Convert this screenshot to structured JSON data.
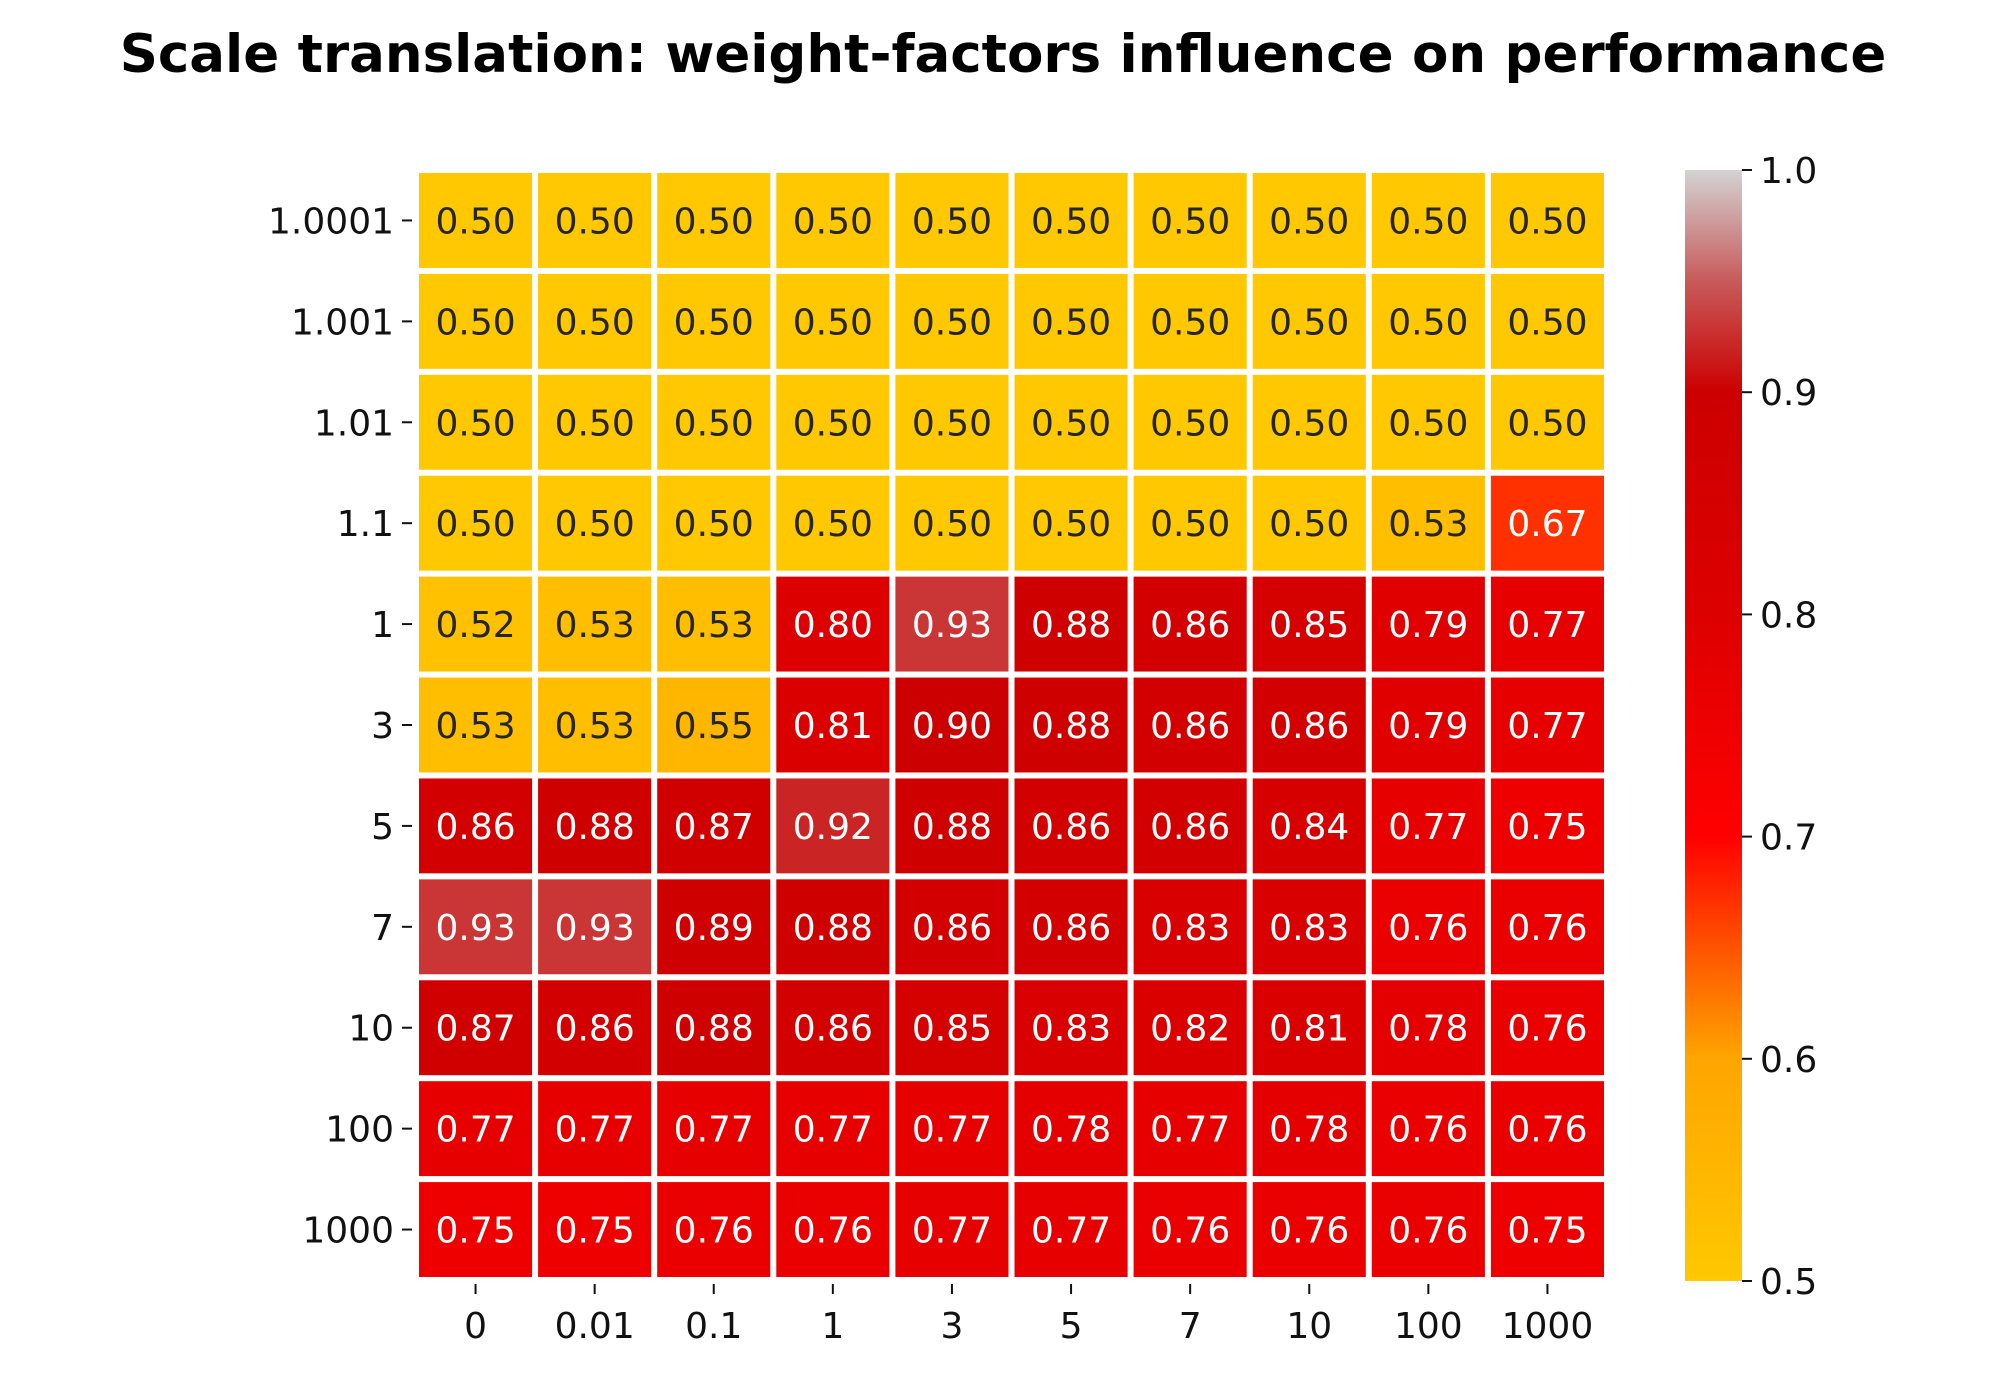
{
  "chart_data": {
    "type": "heatmap",
    "title": "Scale translation: weight-factors influence on performance",
    "xlabel": "",
    "ylabel": "",
    "x_categories": [
      "0",
      "0.01",
      "0.1",
      "1",
      "3",
      "5",
      "7",
      "10",
      "100",
      "1000"
    ],
    "y_categories": [
      "1.0001",
      "1.001",
      "1.01",
      "1.1",
      "1",
      "3",
      "5",
      "7",
      "10",
      "100",
      "1000"
    ],
    "values": [
      [
        0.5,
        0.5,
        0.5,
        0.5,
        0.5,
        0.5,
        0.5,
        0.5,
        0.5,
        0.5
      ],
      [
        0.5,
        0.5,
        0.5,
        0.5,
        0.5,
        0.5,
        0.5,
        0.5,
        0.5,
        0.5
      ],
      [
        0.5,
        0.5,
        0.5,
        0.5,
        0.5,
        0.5,
        0.5,
        0.5,
        0.5,
        0.5
      ],
      [
        0.5,
        0.5,
        0.5,
        0.5,
        0.5,
        0.5,
        0.5,
        0.5,
        0.53,
        0.67
      ],
      [
        0.52,
        0.53,
        0.53,
        0.8,
        0.93,
        0.88,
        0.86,
        0.85,
        0.79,
        0.77
      ],
      [
        0.53,
        0.53,
        0.55,
        0.81,
        0.9,
        0.88,
        0.86,
        0.86,
        0.79,
        0.77
      ],
      [
        0.86,
        0.88,
        0.87,
        0.92,
        0.88,
        0.86,
        0.86,
        0.84,
        0.77,
        0.75
      ],
      [
        0.93,
        0.93,
        0.89,
        0.88,
        0.86,
        0.86,
        0.83,
        0.83,
        0.76,
        0.76
      ],
      [
        0.87,
        0.86,
        0.88,
        0.86,
        0.85,
        0.83,
        0.82,
        0.81,
        0.78,
        0.76
      ],
      [
        0.77,
        0.77,
        0.77,
        0.77,
        0.77,
        0.78,
        0.77,
        0.78,
        0.76,
        0.76
      ],
      [
        0.75,
        0.75,
        0.76,
        0.76,
        0.77,
        0.77,
        0.76,
        0.76,
        0.76,
        0.75
      ]
    ],
    "colorbar": {
      "range": [
        0.5,
        1.0
      ],
      "ticks": [
        "0.5",
        "0.6",
        "0.7",
        "0.8",
        "0.9",
        "1.0"
      ],
      "colormap": [
        {
          "value": 0.5,
          "color": "#ffc800"
        },
        {
          "value": 0.6,
          "color": "#ffa500"
        },
        {
          "value": 0.7,
          "color": "#ff0000"
        },
        {
          "value": 0.8,
          "color": "#dd0000"
        },
        {
          "value": 0.9,
          "color": "#cc0000"
        },
        {
          "value": 0.95,
          "color": "#c85a5a"
        },
        {
          "value": 1.0,
          "color": "#d3d3d3"
        }
      ]
    },
    "annotation_colors": {
      "dark": "#262626",
      "light": "#ffffff"
    },
    "cell_border_color": "#ffffff",
    "grid": false,
    "legend": "colorbar-right"
  }
}
